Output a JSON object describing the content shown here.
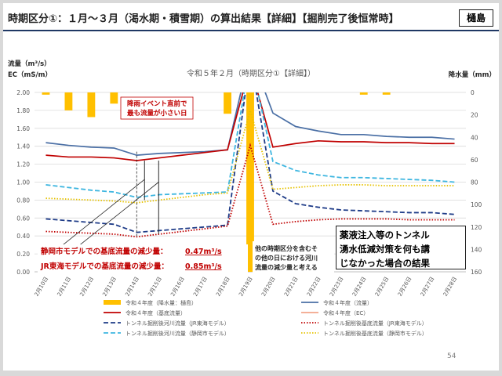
{
  "slide": {
    "title": "時期区分①：１月～３月（渇水期・積雪期）の算出結果【詳細】【掘削完了後恒常時】",
    "badge": "樋島",
    "conclusion_lines": [
      "薬液注入等のトンネル",
      "湧水低減対策を何も講",
      "じなかった場合の結果"
    ],
    "page_number": "54"
  },
  "chart_data": {
    "type": "line",
    "title": "令和５年２月（時期区分①【詳細】）",
    "ylabel_left_1": "流量（m³/s）",
    "ylabel_left_2": "EC（mS/m）",
    "ylabel_right": "降水量（mm）",
    "ylim": [
      0,
      2
    ],
    "y_ticks": [
      "0.00",
      "0.20",
      "0.40",
      "0.60",
      "0.80",
      "1.00",
      "1.20",
      "1.40",
      "1.60",
      "1.80",
      "2.00"
    ],
    "y2lim": [
      0,
      160
    ],
    "y2_ticks": [
      "0",
      "20",
      "40",
      "60",
      "80",
      "100",
      "120",
      "140",
      "160"
    ],
    "categories": [
      "2月10日",
      "2月11日",
      "2月12日",
      "2月13日",
      "2月14日",
      "2月15日",
      "2月16日",
      "2月17日",
      "2月18日",
      "2月19日",
      "2月20日",
      "2月21日",
      "2月22日",
      "2月23日",
      "2月24日",
      "2月25日",
      "2月26日",
      "2月27日",
      "2月28日"
    ],
    "precip": {
      "name": "令和４年度（降水量：樋島）",
      "color": "#ffc000",
      "values": [
        2,
        16,
        22,
        10,
        0,
        0,
        0,
        0,
        19,
        170,
        0,
        0,
        0,
        0,
        2,
        2,
        0,
        0,
        0
      ]
    },
    "series": [
      {
        "name": "令和４年度（流量）",
        "color": "#4a6fa5",
        "style": "solid",
        "values": [
          1.44,
          1.41,
          1.39,
          1.38,
          1.3,
          1.32,
          1.33,
          1.34,
          1.36,
          2.45,
          1.77,
          1.62,
          1.57,
          1.53,
          1.53,
          1.51,
          1.5,
          1.5,
          1.48
        ]
      },
      {
        "name": "令和４年度（基底流量）",
        "color": "#c00000",
        "style": "solid",
        "values": [
          1.3,
          1.28,
          1.28,
          1.27,
          1.24,
          1.27,
          1.3,
          1.33,
          1.36,
          2.3,
          1.39,
          1.43,
          1.46,
          1.45,
          1.45,
          1.44,
          1.44,
          1.43,
          1.43
        ]
      },
      {
        "name": "令和４年度（EC）",
        "color": "#f2a58a",
        "style": "solid",
        "values": [
          null,
          null,
          null,
          null,
          null,
          null,
          null,
          null,
          null,
          null,
          null,
          null,
          null,
          null,
          null,
          null,
          null,
          null,
          null
        ]
      },
      {
        "name": "トンネル掘削後河川流量（JR東海モデル）",
        "color": "#1f3c88",
        "style": "dash",
        "values": [
          0.59,
          0.57,
          0.55,
          0.53,
          0.44,
          0.46,
          0.48,
          0.5,
          0.52,
          2.4,
          0.9,
          0.76,
          0.72,
          0.69,
          0.68,
          0.67,
          0.66,
          0.66,
          0.64
        ]
      },
      {
        "name": "トンネル掘削後基底流量（JR東海モデル）",
        "color": "#c00000",
        "style": "dot",
        "values": [
          0.45,
          0.44,
          0.43,
          0.42,
          0.39,
          0.42,
          0.45,
          0.48,
          0.51,
          1.41,
          0.53,
          0.56,
          0.58,
          0.59,
          0.59,
          0.59,
          0.58,
          0.58,
          0.58
        ]
      },
      {
        "name": "トンネル掘削後河川流量（静岡市モデル）",
        "color": "#3eb6e0",
        "style": "dash",
        "values": [
          0.97,
          0.94,
          0.91,
          0.89,
          0.83,
          0.86,
          0.87,
          0.88,
          0.89,
          2.4,
          1.23,
          1.13,
          1.08,
          1.05,
          1.05,
          1.04,
          1.03,
          1.02,
          1.0
        ]
      },
      {
        "name": "トンネル掘削後基底流量（静岡市モデル）",
        "color": "#e6c200",
        "style": "dot",
        "values": [
          0.82,
          0.81,
          0.8,
          0.79,
          0.77,
          0.8,
          0.83,
          0.86,
          0.88,
          1.8,
          0.92,
          0.94,
          0.96,
          0.97,
          0.97,
          0.96,
          0.96,
          0.96,
          0.96
        ]
      }
    ],
    "annotations": {
      "event_note_1": "降雨イベント直前で",
      "event_note_2": "最も流量が小さい日",
      "reduction_shizuoka_label": "静岡市モデルでの基底流量の減少量：",
      "reduction_shizuoka_value": "0.47m³/s",
      "reduction_jr_label": "JR東海モデルでの基底流量の減少量：",
      "reduction_jr_value": "0.85m³/s",
      "other_note_lines": [
        "他の時期区分を含むそ",
        "の他の日における河川",
        "流量の減少量と考える"
      ]
    },
    "legend_position": "bottom",
    "grid": true
  }
}
